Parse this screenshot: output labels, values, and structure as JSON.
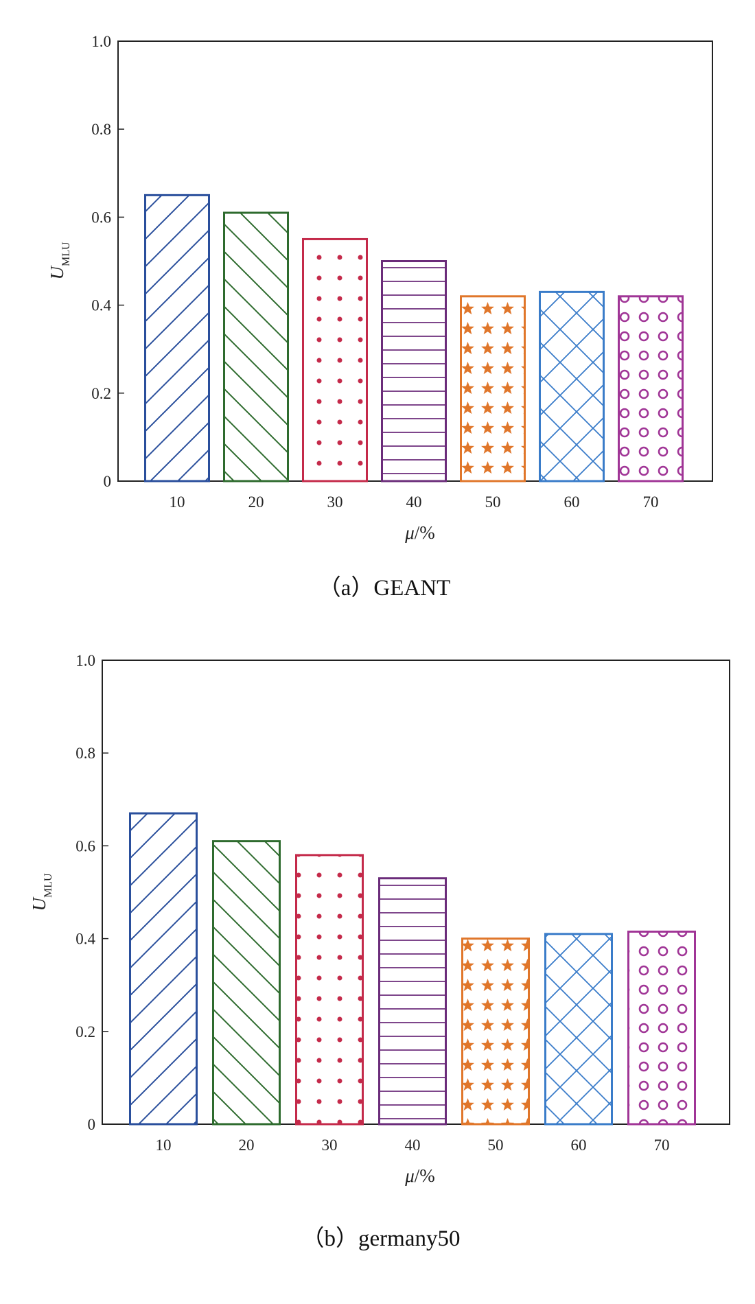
{
  "chart_data": [
    {
      "type": "bar",
      "caption": "（a）GEANT",
      "categories": [
        "10",
        "20",
        "30",
        "40",
        "50",
        "60",
        "70"
      ],
      "values": [
        0.65,
        0.61,
        0.55,
        0.5,
        0.42,
        0.43,
        0.42
      ],
      "ylabel": "U",
      "ylabel_subscript": "MLU",
      "xlabel_symbol": "μ",
      "xlabel_unit": "/%",
      "ylim": [
        0,
        1.0
      ],
      "yticks": [
        "0",
        "0.2",
        "0.4",
        "0.6",
        "0.8",
        "1.0"
      ],
      "grid": false
    },
    {
      "type": "bar",
      "caption": "（b）germany50",
      "categories": [
        "10",
        "20",
        "30",
        "40",
        "50",
        "60",
        "70"
      ],
      "values": [
        0.67,
        0.61,
        0.58,
        0.53,
        0.4,
        0.41,
        0.415
      ],
      "ylabel": "U",
      "ylabel_subscript": "MLU",
      "xlabel_symbol": "μ",
      "xlabel_unit": "/%",
      "ylim": [
        0,
        1.0
      ],
      "yticks": [
        "0",
        "0.2",
        "0.4",
        "0.6",
        "0.8",
        "1.0"
      ],
      "grid": false
    }
  ],
  "bar_styles": [
    {
      "color": "#2a4f9c",
      "pattern": "diagonal-forward"
    },
    {
      "color": "#2e6b2e",
      "pattern": "diagonal-back"
    },
    {
      "color": "#c42a4a",
      "pattern": "dots"
    },
    {
      "color": "#6b2c7a",
      "pattern": "horizontal"
    },
    {
      "color": "#e0762a",
      "pattern": "stars"
    },
    {
      "color": "#3a7cc9",
      "pattern": "crosshatch"
    },
    {
      "color": "#a03596",
      "pattern": "circles"
    }
  ]
}
